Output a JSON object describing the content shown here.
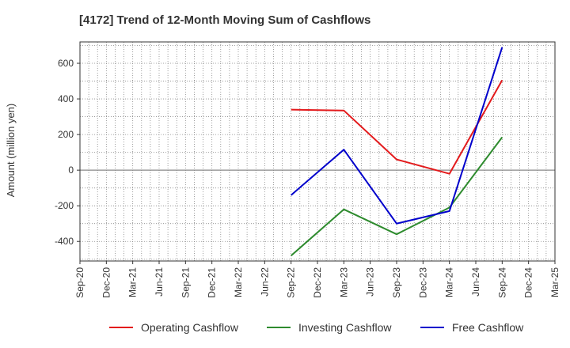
{
  "chart_data": {
    "type": "line",
    "title": "[4172]  Trend of 12-Month Moving Sum of Cashflows",
    "xlabel": "",
    "ylabel": "Amount (million yen)",
    "categories": [
      "Sep-20",
      "Dec-20",
      "Mar-21",
      "Jun-21",
      "Sep-21",
      "Dec-21",
      "Mar-22",
      "Jun-22",
      "Sep-22",
      "Dec-22",
      "Mar-23",
      "Jun-23",
      "Sep-23",
      "Dec-23",
      "Mar-24",
      "Jun-24",
      "Sep-24",
      "Dec-24",
      "Mar-25"
    ],
    "ylim": [
      -510,
      720
    ],
    "yticks": [
      -400,
      -200,
      0,
      200,
      400,
      600
    ],
    "ytick_labels": [
      "-400",
      "-200",
      "0",
      "200",
      "400",
      "600"
    ],
    "grid": true,
    "legend_position": "bottom",
    "series": [
      {
        "name": "Operating Cashflow",
        "color": "#e31a1c",
        "x": [
          "Sep-22",
          "Mar-23",
          "Sep-23",
          "Mar-24",
          "Sep-24"
        ],
        "values": [
          340,
          335,
          60,
          -20,
          505
        ]
      },
      {
        "name": "Investing Cashflow",
        "color": "#2e8b2e",
        "x": [
          "Sep-22",
          "Mar-23",
          "Sep-23",
          "Mar-24",
          "Sep-24"
        ],
        "values": [
          -480,
          -220,
          -360,
          -210,
          185
        ]
      },
      {
        "name": "Free Cashflow",
        "color": "#0000cc",
        "x": [
          "Sep-22",
          "Mar-23",
          "Sep-23",
          "Mar-24",
          "Sep-24"
        ],
        "values": [
          -140,
          115,
          -300,
          -230,
          690
        ]
      }
    ]
  }
}
